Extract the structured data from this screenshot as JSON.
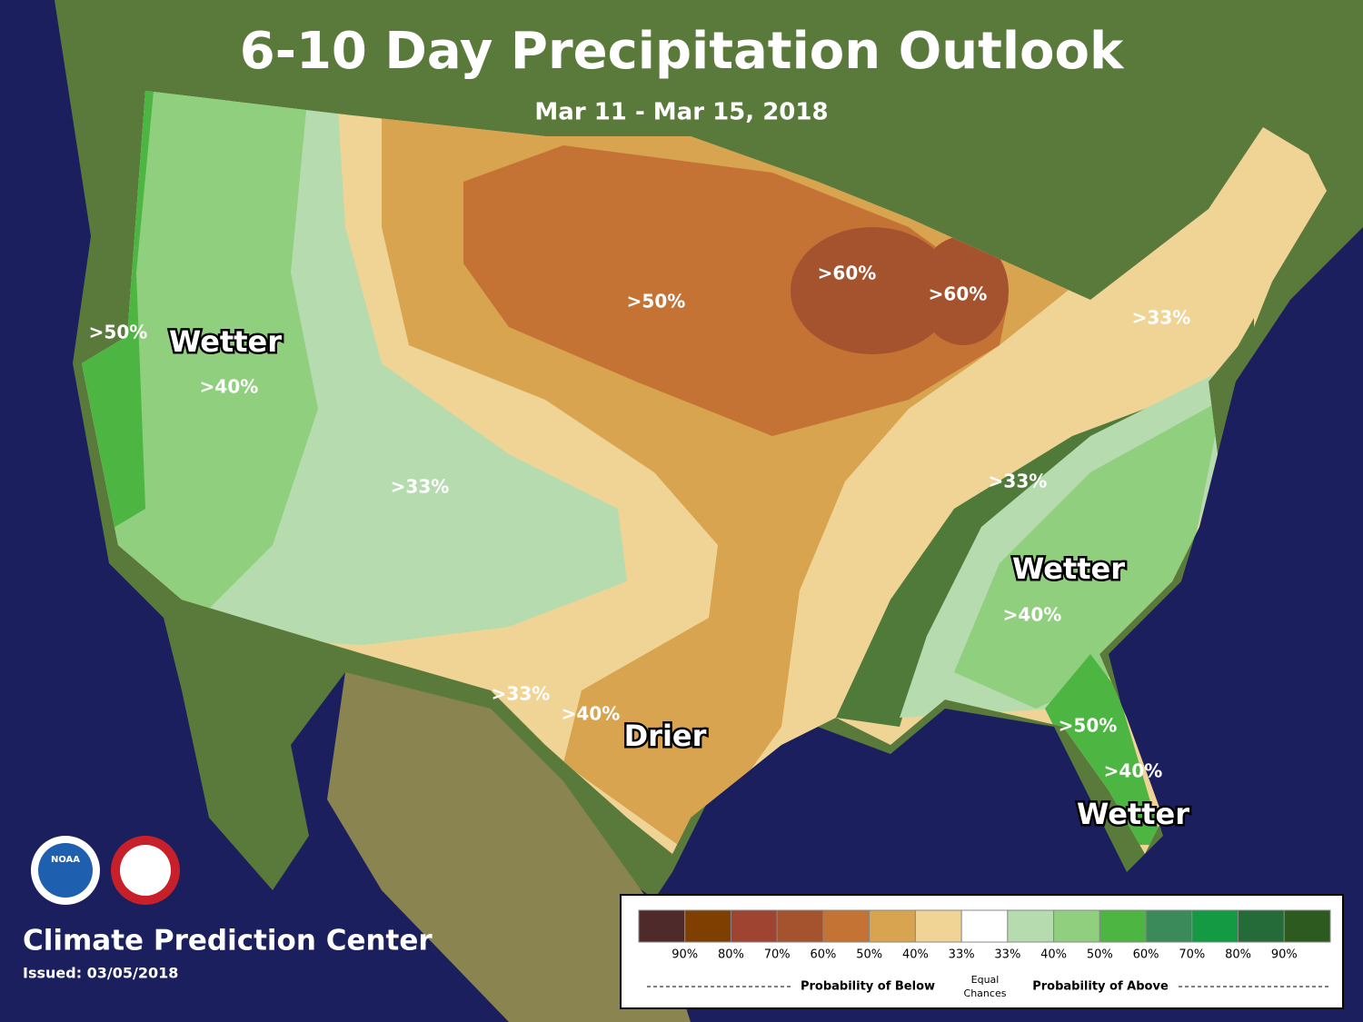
{
  "header": {
    "title": "6-10 Day Precipitation Outlook",
    "subtitle": "Mar 11 - Mar 15, 2018"
  },
  "map": {
    "labels": [
      ">50%",
      "Wetter",
      ">40%",
      ">33%",
      ">50%",
      ">60%",
      ">60%",
      ">33%",
      ">33%",
      "Wetter",
      ">40%",
      ">33%",
      ">40%",
      "Drier",
      ">50%",
      ">40%",
      "Wetter"
    ]
  },
  "logos": {
    "noaa": "NOAA"
  },
  "footer": {
    "agency": "Climate Prediction Center",
    "issued": "Issued: 03/05/2018"
  },
  "legend": {
    "swatch_colors": [
      "#4e2a2a",
      "#7f3f00",
      "#9e4430",
      "#a5532e",
      "#c47335",
      "#d9a44f",
      "#f0d496",
      "#ffffff",
      "#b5dbae",
      "#8fcf7e",
      "#4db542",
      "#3a8a5a",
      "#139a43",
      "#256b3a",
      "#2d5a1e"
    ],
    "labels": [
      "90%",
      "80%",
      "70%",
      "60%",
      "50%",
      "40%",
      "33%",
      "33%",
      "40%",
      "50%",
      "60%",
      "70%",
      "80%",
      "90%"
    ],
    "below": "Probability of Below",
    "equal": [
      "Equal",
      "Chances"
    ],
    "above": "Probability of Above"
  }
}
